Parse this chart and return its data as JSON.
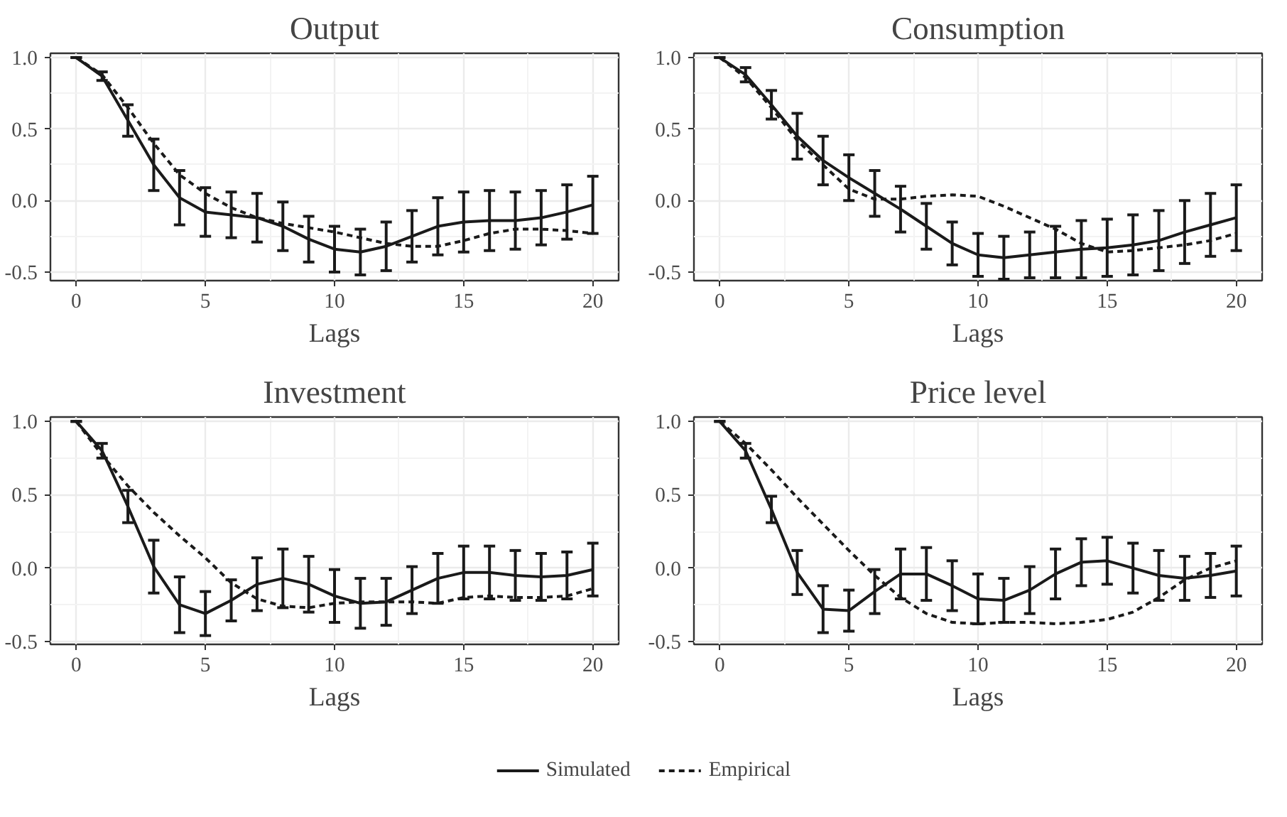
{
  "chart_data": [
    {
      "type": "line",
      "title": "Output",
      "xlabel": "Lags",
      "x": [
        0,
        1,
        2,
        3,
        4,
        5,
        6,
        7,
        8,
        9,
        10,
        11,
        12,
        13,
        14,
        15,
        16,
        17,
        18,
        19,
        20
      ],
      "xlim": [
        -1,
        21
      ],
      "xticks": [
        0,
        5,
        10,
        15,
        20
      ],
      "ylim": [
        -0.56,
        1.03
      ],
      "yticks": [
        {
          "value": -0.5,
          "label": "-0.5"
        },
        {
          "value": 0,
          "label": "0.0"
        },
        {
          "value": 0.5,
          "label": "0.5"
        },
        {
          "value": 1,
          "label": "1.0"
        }
      ],
      "grid": true,
      "legend": "bottom",
      "series": [
        {
          "name": "Simulated",
          "color": "#1a1a1a",
          "line_style": "solid",
          "values": [
            1.0,
            0.87,
            0.56,
            0.25,
            0.02,
            -0.08,
            -0.1,
            -0.12,
            -0.18,
            -0.27,
            -0.34,
            -0.36,
            -0.32,
            -0.25,
            -0.18,
            -0.15,
            -0.14,
            -0.14,
            -0.12,
            -0.08,
            -0.03
          ],
          "errors": [
            0,
            0.03,
            0.11,
            0.18,
            0.19,
            0.17,
            0.16,
            0.17,
            0.17,
            0.16,
            0.16,
            0.16,
            0.17,
            0.18,
            0.2,
            0.21,
            0.21,
            0.2,
            0.19,
            0.19,
            0.2
          ]
        },
        {
          "name": "Empirical",
          "color": "#1a1a1a",
          "line_style": "dashed",
          "values": [
            1.0,
            0.88,
            0.65,
            0.4,
            0.18,
            0.05,
            -0.05,
            -0.12,
            -0.16,
            -0.19,
            -0.22,
            -0.26,
            -0.3,
            -0.32,
            -0.32,
            -0.28,
            -0.23,
            -0.2,
            -0.2,
            -0.21,
            -0.23
          ]
        }
      ]
    },
    {
      "type": "line",
      "title": "Consumption",
      "xlabel": "Lags",
      "x": [
        0,
        1,
        2,
        3,
        4,
        5,
        6,
        7,
        8,
        9,
        10,
        11,
        12,
        13,
        14,
        15,
        16,
        17,
        18,
        19,
        20
      ],
      "xlim": [
        -1,
        21
      ],
      "xticks": [
        0,
        5,
        10,
        15,
        20
      ],
      "ylim": [
        -0.56,
        1.03
      ],
      "yticks": [
        {
          "value": -0.5,
          "label": "-0.5"
        },
        {
          "value": 0,
          "label": "0.0"
        },
        {
          "value": 0.5,
          "label": "0.5"
        },
        {
          "value": 1,
          "label": "1.0"
        }
      ],
      "grid": true,
      "legend": "bottom",
      "series": [
        {
          "name": "Simulated",
          "color": "#1a1a1a",
          "line_style": "solid",
          "values": [
            1.0,
            0.88,
            0.67,
            0.45,
            0.28,
            0.16,
            0.05,
            -0.06,
            -0.18,
            -0.3,
            -0.38,
            -0.4,
            -0.38,
            -0.36,
            -0.34,
            -0.33,
            -0.31,
            -0.28,
            -0.22,
            -0.17,
            -0.12
          ],
          "errors": [
            0,
            0.05,
            0.1,
            0.16,
            0.17,
            0.16,
            0.16,
            0.16,
            0.16,
            0.15,
            0.15,
            0.15,
            0.16,
            0.18,
            0.2,
            0.2,
            0.21,
            0.21,
            0.22,
            0.22,
            0.23
          ]
        },
        {
          "name": "Empirical",
          "color": "#1a1a1a",
          "line_style": "dashed",
          "values": [
            1.0,
            0.86,
            0.65,
            0.42,
            0.25,
            0.08,
            0.01,
            0.01,
            0.03,
            0.04,
            0.03,
            -0.04,
            -0.12,
            -0.2,
            -0.3,
            -0.36,
            -0.35,
            -0.33,
            -0.31,
            -0.28,
            -0.23
          ]
        }
      ]
    },
    {
      "type": "line",
      "title": "Investment",
      "xlabel": "Lags",
      "x": [
        0,
        1,
        2,
        3,
        4,
        5,
        6,
        7,
        8,
        9,
        10,
        11,
        12,
        13,
        14,
        15,
        16,
        17,
        18,
        19,
        20
      ],
      "xlim": [
        -1,
        21
      ],
      "xticks": [
        0,
        5,
        10,
        15,
        20
      ],
      "ylim": [
        -0.52,
        1.03
      ],
      "yticks": [
        {
          "value": -0.5,
          "label": "-0.5"
        },
        {
          "value": 0,
          "label": "0.0"
        },
        {
          "value": 0.5,
          "label": "0.5"
        },
        {
          "value": 1,
          "label": "1.0"
        }
      ],
      "grid": true,
      "legend": "bottom",
      "series": [
        {
          "name": "Simulated",
          "color": "#1a1a1a",
          "line_style": "solid",
          "values": [
            1.0,
            0.8,
            0.42,
            0.01,
            -0.25,
            -0.31,
            -0.22,
            -0.11,
            -0.07,
            -0.11,
            -0.19,
            -0.24,
            -0.23,
            -0.15,
            -0.07,
            -0.03,
            -0.03,
            -0.05,
            -0.06,
            -0.05,
            -0.01
          ],
          "errors": [
            0,
            0.05,
            0.11,
            0.18,
            0.19,
            0.15,
            0.14,
            0.18,
            0.2,
            0.19,
            0.18,
            0.17,
            0.16,
            0.16,
            0.17,
            0.18,
            0.18,
            0.17,
            0.16,
            0.16,
            0.18
          ]
        },
        {
          "name": "Empirical",
          "color": "#1a1a1a",
          "line_style": "dashed",
          "values": [
            1.0,
            0.77,
            0.56,
            0.38,
            0.22,
            0.07,
            -0.1,
            -0.21,
            -0.26,
            -0.27,
            -0.24,
            -0.23,
            -0.23,
            -0.23,
            -0.24,
            -0.2,
            -0.19,
            -0.2,
            -0.2,
            -0.19,
            -0.14
          ]
        }
      ]
    },
    {
      "type": "line",
      "title": "Price level",
      "xlabel": "Lags",
      "x": [
        0,
        1,
        2,
        3,
        4,
        5,
        6,
        7,
        8,
        9,
        10,
        11,
        12,
        13,
        14,
        15,
        16,
        17,
        18,
        19,
        20
      ],
      "xlim": [
        -1,
        21
      ],
      "xticks": [
        0,
        5,
        10,
        15,
        20
      ],
      "ylim": [
        -0.52,
        1.03
      ],
      "yticks": [
        {
          "value": -0.5,
          "label": "-0.5"
        },
        {
          "value": 0,
          "label": "0.0"
        },
        {
          "value": 0.5,
          "label": "0.5"
        },
        {
          "value": 1,
          "label": "1.0"
        }
      ],
      "grid": true,
      "legend": "bottom",
      "series": [
        {
          "name": "Simulated",
          "color": "#1a1a1a",
          "line_style": "solid",
          "values": [
            1.0,
            0.8,
            0.4,
            -0.03,
            -0.28,
            -0.29,
            -0.16,
            -0.04,
            -0.04,
            -0.12,
            -0.21,
            -0.22,
            -0.15,
            -0.04,
            0.04,
            0.05,
            0.0,
            -0.05,
            -0.07,
            -0.05,
            -0.02
          ],
          "errors": [
            0,
            0.05,
            0.09,
            0.15,
            0.16,
            0.14,
            0.15,
            0.17,
            0.18,
            0.17,
            0.17,
            0.15,
            0.16,
            0.17,
            0.16,
            0.16,
            0.17,
            0.17,
            0.15,
            0.15,
            0.17
          ]
        },
        {
          "name": "Empirical",
          "color": "#1a1a1a",
          "line_style": "dashed",
          "values": [
            1.0,
            0.85,
            0.67,
            0.48,
            0.3,
            0.12,
            -0.05,
            -0.2,
            -0.31,
            -0.37,
            -0.38,
            -0.37,
            -0.37,
            -0.38,
            -0.37,
            -0.35,
            -0.3,
            -0.2,
            -0.08,
            0.0,
            0.05
          ]
        }
      ]
    }
  ]
}
